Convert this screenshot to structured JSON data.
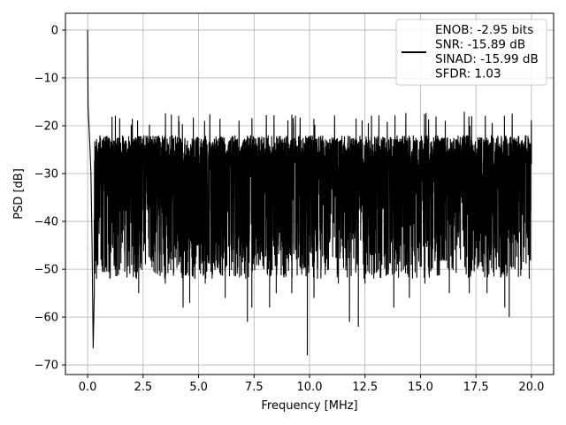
{
  "chart_data": {
    "type": "line",
    "xlabel": "Frequency [MHz]",
    "ylabel": "PSD [dB]",
    "xlim": [
      -1.0,
      21.0
    ],
    "ylim": [
      -72.0,
      3.5
    ],
    "xticks": [
      0.0,
      2.5,
      5.0,
      7.5,
      10.0,
      12.5,
      15.0,
      17.5,
      20.0
    ],
    "xtick_labels": [
      "0.0",
      "2.5",
      "5.0",
      "7.5",
      "10.0",
      "12.5",
      "15.0",
      "17.5",
      "20.0"
    ],
    "yticks": [
      0,
      -10,
      -20,
      -30,
      -40,
      -50,
      -60,
      -70
    ],
    "ytick_labels": [
      "0",
      "−10",
      "−20",
      "−30",
      "−40",
      "−50",
      "−60",
      "−70"
    ],
    "grid": true,
    "legend_position": "top-right",
    "series": [
      {
        "name": "",
        "color": "#000000",
        "description_noise_band": {
          "x_range": [
            0.0,
            20.0
          ],
          "typical_max": -22,
          "typical_min": -45
        },
        "x": [
          0.0,
          0.02,
          0.05,
          0.1,
          0.15,
          0.2,
          0.25,
          0.3,
          0.4,
          0.5,
          0.6,
          0.8,
          1.0,
          1.2,
          1.5,
          2.2,
          2.3,
          3.0,
          3.5,
          4.3,
          4.6,
          5.3,
          6.2,
          7.2,
          7.4,
          8.2,
          8.5,
          9.2,
          9.9,
          10.2,
          11.3,
          11.8,
          12.2,
          12.5,
          13.8,
          14.5,
          15.2,
          15.8,
          16.3,
          16.8,
          17.2,
          18.0,
          18.8,
          19.0,
          19.9,
          20.0
        ],
        "y": [
          0.0,
          -16,
          -19,
          -24,
          -30,
          -45,
          -66.5,
          -55,
          -52,
          -40,
          -48,
          -30,
          -52,
          -38,
          -47,
          -52,
          -55,
          -25,
          -53,
          -58,
          -57,
          -53,
          -56,
          -61,
          -58,
          -58,
          -55,
          -55,
          -68,
          -56,
          -53,
          -61,
          -62,
          -53,
          -58,
          -56,
          -53,
          -47,
          -55,
          -48,
          -55,
          -55,
          -58,
          -60,
          -52,
          -28
        ]
      }
    ],
    "legend_lines": [
      "ENOB: -2.95 bits",
      "SNR: -15.89 dB",
      "SINAD: -15.99 dB",
      "SFDR: 1.03"
    ]
  }
}
